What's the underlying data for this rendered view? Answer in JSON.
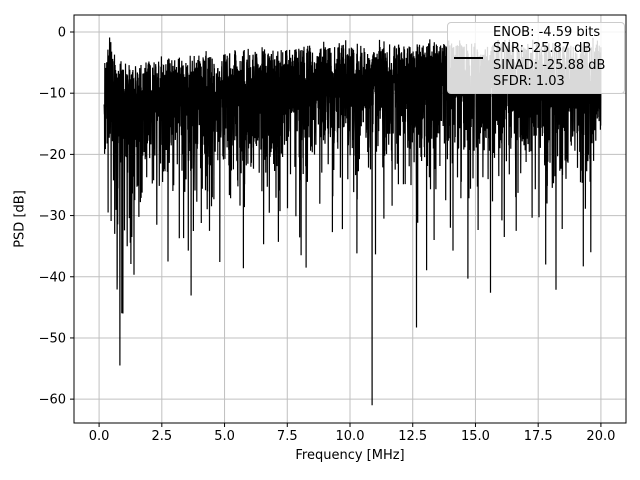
{
  "chart_data": {
    "type": "line",
    "title": "",
    "xlabel": "Frequency [MHz]",
    "ylabel": "PSD [dB]",
    "xlim": [
      -1,
      21
    ],
    "ylim": [
      -63.9,
      2.78
    ],
    "grid": true,
    "grid_color": "#c0c0c0",
    "line_color": "#000000",
    "spine_color": "#000000",
    "xticks": [
      0,
      2.5,
      5,
      7.5,
      10,
      12.5,
      15,
      17.5,
      20
    ],
    "xtick_labels": [
      "0.0",
      "2.5",
      "5.0",
      "7.5",
      "10.0",
      "12.5",
      "15.0",
      "17.5",
      "20.0"
    ],
    "yticks": [
      0,
      -10,
      -20,
      -30,
      -40,
      -50,
      -60
    ],
    "ytick_labels": [
      "0",
      "−10",
      "−20",
      "−30",
      "−40",
      "−50",
      "−60"
    ],
    "legend": {
      "position": "upper right",
      "lines": [
        "ENOB: -4.59 bits",
        "SNR: -25.87 dB",
        "SINAD: -25.88 dB",
        "SFDR: 1.03"
      ]
    },
    "stats": {
      "ENOB_bits": -4.59,
      "SNR_dB": -25.87,
      "SINAD_dB": -25.88,
      "SFDR": 1.03
    },
    "series": [
      {
        "name": "PSD",
        "color": "#000000",
        "description": "Dense noise-like power spectral density trace from ~0.2 to 20 MHz; mean level rises from about -10.5 dB at low frequency to -7 dB above 10 MHz, top envelope near -2 dB, dense body down to about -20/-30 dB with deep narrow notches.",
        "noise": {
          "seed": 11,
          "n_points": 4096,
          "f_start": 0.2,
          "f_end": 20.0,
          "tail_scale_dB": 10,
          "left_tail": {
            "f_max": 1.7,
            "scale_dB": 13.5
          },
          "mean_envelope_dB": [
            [
              0.2,
              -9.5
            ],
            [
              0.45,
              -6.0
            ],
            [
              0.7,
              -10.5
            ],
            [
              1.0,
              -10.8
            ],
            [
              1.8,
              -10.4
            ],
            [
              3.0,
              -9.6
            ],
            [
              5.0,
              -8.8
            ],
            [
              7.0,
              -8.0
            ],
            [
              9.0,
              -7.3
            ],
            [
              12.0,
              -7.0
            ],
            [
              16.0,
              -7.0
            ],
            [
              20.0,
              -7.2
            ]
          ],
          "peaks": [
            [
              0.42,
              -0.9
            ],
            [
              0.5,
              -3.2
            ],
            [
              8.95,
              -1.6
            ]
          ],
          "notches": [
            [
              0.62,
              -33
            ],
            [
              0.72,
              -40
            ],
            [
              0.83,
              -54.5
            ],
            [
              0.95,
              -46
            ],
            [
              1.12,
              -35
            ],
            [
              1.3,
              -33.5
            ],
            [
              2.3,
              -31.5
            ],
            [
              2.75,
              -37.5
            ],
            [
              3.2,
              -33.7
            ],
            [
              4.4,
              -32.5
            ],
            [
              5.75,
              -38.6
            ],
            [
              7.15,
              -34.3
            ],
            [
              8.05,
              -36.5
            ],
            [
              8.25,
              -38.5
            ],
            [
              9.3,
              -32.7
            ],
            [
              10.88,
              -61
            ],
            [
              11.35,
              -30.5
            ],
            [
              12.65,
              -48.3
            ],
            [
              13.35,
              -34
            ],
            [
              14.0,
              -32
            ],
            [
              14.7,
              -40.3
            ],
            [
              15.6,
              -42.6
            ],
            [
              16.15,
              -33.5
            ],
            [
              17.8,
              -38
            ],
            [
              19.3,
              -38.3
            ],
            [
              19.6,
              -36
            ]
          ]
        }
      }
    ]
  }
}
